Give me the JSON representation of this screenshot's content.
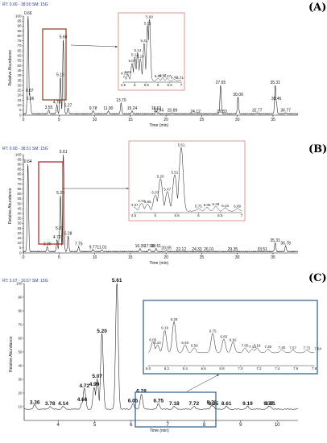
{
  "chart_data": [
    {
      "type": "line",
      "panel_label": "(A)",
      "header": "RT: 0.00 - 38.50  SM: 15G",
      "xlabel": "Time (min)",
      "ylabel": "Relative Abundance",
      "xlim": [
        0,
        38.5
      ],
      "ylim": [
        0,
        100
      ],
      "x_ticks": [
        0,
        5,
        10,
        15,
        20,
        25,
        30,
        35
      ],
      "y_ticks": [
        0,
        5,
        10,
        15,
        20,
        25,
        30,
        35,
        40,
        45,
        50,
        55,
        60,
        65,
        70,
        75,
        80,
        85,
        90,
        95,
        100
      ],
      "peaks": [
        {
          "x": 0.66,
          "y": 100,
          "label": "0.66"
        },
        {
          "x": 0.87,
          "y": 22,
          "label": "0.87"
        },
        {
          "x": 0.96,
          "y": 14,
          "label": "0.96"
        },
        {
          "x": 3.55,
          "y": 5,
          "label": "3.55"
        },
        {
          "x": 4.7,
          "y": 10,
          "label": "4.70"
        },
        {
          "x": 5.19,
          "y": 38,
          "label": "5.19"
        },
        {
          "x": 5.6,
          "y": 76,
          "label": "5.60"
        },
        {
          "x": 6.27,
          "y": 7,
          "label": "6.27"
        },
        {
          "x": 9.78,
          "y": 4,
          "label": "9.78"
        },
        {
          "x": 11.9,
          "y": 4,
          "label": "11.90"
        },
        {
          "x": 13.7,
          "y": 12,
          "label": "13.70"
        },
        {
          "x": 15.24,
          "y": 4,
          "label": "15.24"
        },
        {
          "x": 18.63,
          "y": 4,
          "label": "18.63"
        },
        {
          "x": 18.94,
          "y": 2,
          "label": "18.94"
        },
        {
          "x": 20.89,
          "y": 2,
          "label": "20.89"
        },
        {
          "x": 24.12,
          "y": 1,
          "label": "24.12"
        },
        {
          "x": 27.65,
          "y": 30,
          "label": "27.65"
        },
        {
          "x": 27.83,
          "y": 1,
          "label": "27.83"
        },
        {
          "x": 30.09,
          "y": 18,
          "label": "30.09"
        },
        {
          "x": 32.77,
          "y": 2,
          "label": "32.77"
        },
        {
          "x": 35.31,
          "y": 30,
          "label": "35.31"
        },
        {
          "x": 35.46,
          "y": 14,
          "label": "35.46"
        },
        {
          "x": 36.77,
          "y": 2,
          "label": "36.77"
        }
      ],
      "inset": {
        "x_ticks": [
          "4.5",
          "5",
          "5.5",
          "6",
          "6.5",
          "7"
        ],
        "peaks": [
          {
            "x": 4.55,
            "y": 10,
            "label": "4.72"
          },
          {
            "x": 4.7,
            "y": 12,
            "label": "4.91"
          },
          {
            "x": 4.88,
            "y": 30,
            "label": "5.07"
          },
          {
            "x": 5.0,
            "y": 40,
            "label": "5.12"
          },
          {
            "x": 5.12,
            "y": 47,
            "label": "5.14"
          },
          {
            "x": 5.24,
            "y": 37,
            "label": "5.19"
          },
          {
            "x": 5.4,
            "y": 62,
            "label": "5.41"
          },
          {
            "x": 5.55,
            "y": 90,
            "label": "5.52"
          },
          {
            "x": 5.63,
            "y": 100,
            "label": "5.60"
          },
          {
            "x": 6.0,
            "y": 6,
            "label": "6.02"
          },
          {
            "x": 6.2,
            "y": 7,
            "label": "6.17"
          },
          {
            "x": 6.4,
            "y": 6,
            "label": "6.27"
          },
          {
            "x": 6.7,
            "y": 4,
            "label": "6.42"
          },
          {
            "x": 6.95,
            "y": 3,
            "label": "6.71"
          }
        ]
      }
    },
    {
      "type": "line",
      "panel_label": "(B)",
      "header": "RT: 0.00 - 38.51  SM: 15G",
      "xlabel": "Time (min)",
      "ylabel": "Relative Abundance",
      "xlim": [
        0,
        38.51
      ],
      "ylim": [
        0,
        100
      ],
      "x_ticks": [
        0,
        5,
        10,
        15,
        20,
        25,
        30,
        35
      ],
      "y_ticks": [
        0,
        5,
        10,
        15,
        20,
        25,
        30,
        35,
        40,
        45,
        50,
        55,
        60,
        65,
        70,
        75,
        80,
        85,
        90,
        95,
        100
      ],
      "peaks": [
        {
          "x": 0.64,
          "y": 90,
          "label": "0.64"
        },
        {
          "x": 3.36,
          "y": 6,
          "label": "3.36"
        },
        {
          "x": 4.72,
          "y": 13,
          "label": "4.72"
        },
        {
          "x": 5.07,
          "y": 22,
          "label": "5.07"
        },
        {
          "x": 5.2,
          "y": 58,
          "label": "5.20"
        },
        {
          "x": 5.61,
          "y": 100,
          "label": "5.61"
        },
        {
          "x": 6.28,
          "y": 17,
          "label": "6.28"
        },
        {
          "x": 7.75,
          "y": 6,
          "label": "7.75"
        },
        {
          "x": 9.77,
          "y": 3,
          "label": "9.77"
        },
        {
          "x": 11.01,
          "y": 3,
          "label": "11.01"
        },
        {
          "x": 16.36,
          "y": 4,
          "label": "16.36"
        },
        {
          "x": 17.66,
          "y": 4,
          "label": "17.66"
        },
        {
          "x": 18.61,
          "y": 4,
          "label": "18.61"
        },
        {
          "x": 20.05,
          "y": 2,
          "label": "20.05"
        },
        {
          "x": 22.12,
          "y": 1,
          "label": "22.12"
        },
        {
          "x": 24.33,
          "y": 1,
          "label": "24.33"
        },
        {
          "x": 26.01,
          "y": 1,
          "label": "26.01"
        },
        {
          "x": 29.35,
          "y": 1,
          "label": "29.35"
        },
        {
          "x": 33.51,
          "y": 1,
          "label": "33.51"
        },
        {
          "x": 35.31,
          "y": 10,
          "label": "35.31"
        },
        {
          "x": 36.78,
          "y": 7,
          "label": "36.78"
        }
      ],
      "inset": {
        "x_ticks": [
          "4.5",
          "5",
          "5.5",
          "6",
          "6.5",
          "7"
        ],
        "peaks": [
          {
            "x": 4.52,
            "y": 8,
            "label": "4.37"
          },
          {
            "x": 4.68,
            "y": 14,
            "label": "4.72"
          },
          {
            "x": 4.82,
            "y": 13,
            "label": "4.86"
          },
          {
            "x": 5.0,
            "y": 27,
            "label": "5.07"
          },
          {
            "x": 5.12,
            "y": 52,
            "label": "5.20"
          },
          {
            "x": 5.28,
            "y": 32,
            "label": "5.47"
          },
          {
            "x": 5.45,
            "y": 58,
            "label": "5.51"
          },
          {
            "x": 5.6,
            "y": 100,
            "label": "5.61"
          },
          {
            "x": 6.0,
            "y": 6,
            "label": "5.75"
          },
          {
            "x": 6.2,
            "y": 8,
            "label": "6.05"
          },
          {
            "x": 6.4,
            "y": 9,
            "label": "6.28"
          },
          {
            "x": 6.62,
            "y": 7,
            "label": "6.43"
          },
          {
            "x": 6.9,
            "y": 6,
            "label": "6.89"
          }
        ]
      }
    },
    {
      "type": "line",
      "panel_label": "(C)",
      "header": "RT: 3.07 - 10.57  SM: 15G",
      "xlabel": "Time (min)",
      "ylabel": "Relative Abundance",
      "xlim": [
        3.07,
        10.57
      ],
      "ylim": [
        0,
        100
      ],
      "x_ticks": [
        4,
        5,
        6,
        7,
        8,
        9,
        10
      ],
      "y_ticks": [
        10,
        20,
        30,
        40,
        50,
        60,
        70,
        80,
        90,
        100
      ],
      "peaks": [
        {
          "x": 3.36,
          "y": 11,
          "label": "3.36"
        },
        {
          "x": 3.78,
          "y": 10,
          "label": "3.78"
        },
        {
          "x": 4.14,
          "y": 10,
          "label": "4.14"
        },
        {
          "x": 4.66,
          "y": 13,
          "label": "4.66"
        },
        {
          "x": 4.72,
          "y": 23,
          "label": "4.72"
        },
        {
          "x": 4.99,
          "y": 24,
          "label": "4.99"
        },
        {
          "x": 5.07,
          "y": 30,
          "label": "5.07"
        },
        {
          "x": 5.2,
          "y": 63,
          "label": "5.20"
        },
        {
          "x": 5.61,
          "y": 100,
          "label": "5.61"
        },
        {
          "x": 6.05,
          "y": 12,
          "label": "6.05"
        },
        {
          "x": 6.28,
          "y": 19,
          "label": "6.28"
        },
        {
          "x": 6.75,
          "y": 12,
          "label": "6.75"
        },
        {
          "x": 7.18,
          "y": 10,
          "label": "7.18"
        },
        {
          "x": 7.72,
          "y": 10,
          "label": "7.72"
        },
        {
          "x": 8.21,
          "y": 11,
          "label": "8.21"
        },
        {
          "x": 8.25,
          "y": 10,
          "label": "8.25"
        },
        {
          "x": 8.61,
          "y": 10,
          "label": "8.61"
        },
        {
          "x": 9.19,
          "y": 10,
          "label": "9.19"
        },
        {
          "x": 9.77,
          "y": 10,
          "label": "9.77"
        },
        {
          "x": 9.81,
          "y": 10,
          "label": "9.81"
        }
      ],
      "inset": {
        "x_ticks": [
          "6.0",
          "6.2",
          "6.4",
          "6.6",
          "6.8",
          "7.0",
          "7.2",
          "7.4",
          "7.6",
          "7.8"
        ],
        "peaks": [
          {
            "x": 6.05,
            "y": 40,
            "label": "6.05"
          },
          {
            "x": 6.1,
            "y": 35,
            "label": "6.10"
          },
          {
            "x": 6.18,
            "y": 60,
            "label": "6.19"
          },
          {
            "x": 6.28,
            "y": 75,
            "label": "6.28"
          },
          {
            "x": 6.4,
            "y": 35,
            "label": "6.40"
          },
          {
            "x": 6.5,
            "y": 30,
            "label": "6.59"
          },
          {
            "x": 6.7,
            "y": 55,
            "label": "6.75"
          },
          {
            "x": 6.82,
            "y": 45,
            "label": "6.83"
          },
          {
            "x": 6.92,
            "y": 40,
            "label": "6.92"
          },
          {
            "x": 7.05,
            "y": 30,
            "label": "7.05"
          },
          {
            "x": 7.13,
            "y": 28,
            "label": "7.13"
          },
          {
            "x": 7.18,
            "y": 30,
            "label": "7.18"
          },
          {
            "x": 7.3,
            "y": 28,
            "label": "7.30"
          },
          {
            "x": 7.45,
            "y": 27,
            "label": "7.45"
          },
          {
            "x": 7.57,
            "y": 26,
            "label": "7.57"
          },
          {
            "x": 7.72,
            "y": 26,
            "label": "7.72"
          },
          {
            "x": 7.84,
            "y": 25,
            "label": "7.84"
          }
        ]
      }
    }
  ],
  "colors": {
    "trace": "#1a1a1a",
    "header_text": "#2a3a8a",
    "box_a": "#8b3a1a",
    "box_b": "#b02020",
    "box_c": "#2a5a8a",
    "inset_border_ab": "#d08070",
    "badge_fill": "#f5e6b0",
    "badge_stroke": "#b8944a"
  }
}
